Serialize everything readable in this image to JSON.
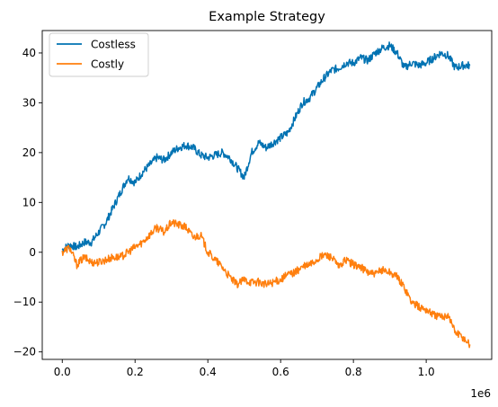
{
  "chart_data": {
    "type": "line",
    "title": "Example Strategy",
    "xlabel": "",
    "ylabel": "",
    "x_offset_label": "1e6",
    "xlim": [
      -55000,
      1180000
    ],
    "ylim": [
      -21.5,
      44.5
    ],
    "xticks": [
      0,
      0.2,
      0.4,
      0.6,
      0.8,
      1.0
    ],
    "xtick_labels": [
      "0.0",
      "0.2",
      "0.4",
      "0.6",
      "0.8",
      "1.0"
    ],
    "yticks": [
      -20,
      -10,
      0,
      10,
      20,
      30,
      40
    ],
    "ytick_labels": [
      "−20",
      "−10",
      "0",
      "10",
      "20",
      "30",
      "40"
    ],
    "grid": false,
    "legend_position": "upper-left",
    "series": [
      {
        "name": "Costless",
        "color": "#0072B2",
        "x": [
          0,
          20000,
          40000,
          60000,
          80000,
          100000,
          120000,
          140000,
          160000,
          180000,
          200000,
          220000,
          240000,
          260000,
          280000,
          300000,
          320000,
          340000,
          360000,
          380000,
          400000,
          420000,
          440000,
          460000,
          480000,
          500000,
          520000,
          540000,
          560000,
          580000,
          600000,
          620000,
          640000,
          660000,
          680000,
          700000,
          720000,
          740000,
          760000,
          780000,
          800000,
          820000,
          840000,
          860000,
          880000,
          900000,
          920000,
          940000,
          960000,
          980000,
          1000000,
          1020000,
          1040000,
          1060000,
          1080000,
          1100000,
          1120000
        ],
        "y": [
          0.5,
          1.5,
          1.0,
          2.0,
          2.0,
          4.0,
          6.0,
          9.0,
          12.0,
          15.0,
          14.0,
          16.0,
          17.5,
          19.0,
          18.5,
          20.0,
          21.0,
          21.5,
          21.0,
          19.5,
          19.0,
          19.5,
          20.0,
          19.0,
          17.0,
          15.0,
          20.0,
          22.0,
          21.0,
          22.0,
          23.0,
          24.0,
          27.0,
          30.0,
          31.0,
          33.0,
          35.0,
          36.5,
          37.0,
          38.0,
          38.0,
          39.0,
          38.5,
          40.0,
          41.0,
          41.5,
          40.0,
          37.0,
          38.0,
          37.5,
          38.0,
          39.0,
          40.0,
          39.5,
          37.0,
          37.5,
          37.5
        ]
      },
      {
        "name": "Costly",
        "color": "#FF7F0E",
        "x": [
          0,
          20000,
          40000,
          60000,
          80000,
          100000,
          120000,
          140000,
          160000,
          180000,
          200000,
          220000,
          240000,
          260000,
          280000,
          300000,
          320000,
          340000,
          360000,
          380000,
          400000,
          420000,
          440000,
          460000,
          480000,
          500000,
          520000,
          540000,
          560000,
          580000,
          600000,
          620000,
          640000,
          660000,
          680000,
          700000,
          720000,
          740000,
          760000,
          780000,
          800000,
          820000,
          840000,
          860000,
          880000,
          900000,
          920000,
          940000,
          960000,
          980000,
          1000000,
          1020000,
          1040000,
          1060000,
          1080000,
          1100000,
          1120000
        ],
        "y": [
          0.0,
          1.0,
          -2.5,
          -1.0,
          -2.0,
          -2.0,
          -1.5,
          -1.0,
          -1.0,
          0.0,
          1.0,
          2.0,
          3.5,
          5.0,
          4.0,
          6.0,
          5.5,
          5.0,
          3.0,
          3.5,
          0.0,
          -1.5,
          -3.0,
          -5.0,
          -6.5,
          -5.5,
          -6.0,
          -6.0,
          -6.5,
          -6.0,
          -5.5,
          -4.5,
          -4.0,
          -3.0,
          -2.5,
          -1.5,
          -0.5,
          -1.0,
          -3.0,
          -1.5,
          -2.5,
          -3.0,
          -4.0,
          -4.5,
          -3.5,
          -4.0,
          -5.0,
          -7.0,
          -10.0,
          -11.0,
          -11.5,
          -12.5,
          -13.0,
          -12.5,
          -16.0,
          -17.0,
          -18.5
        ]
      }
    ]
  }
}
